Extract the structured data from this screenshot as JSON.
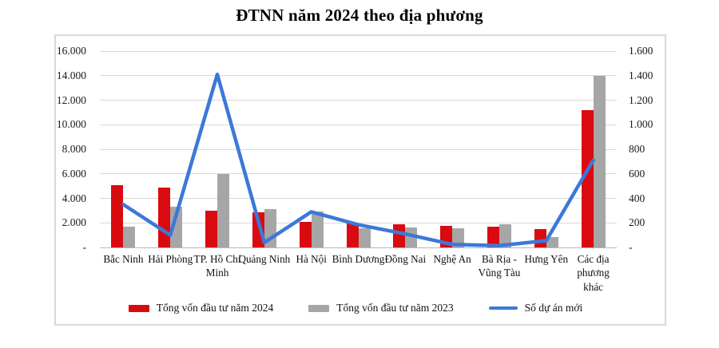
{
  "page": {
    "title": "ĐTNN năm 2024 theo địa phương"
  },
  "chart_data": {
    "type": "combo-bar-line",
    "title": "ĐTNN năm 2024 theo địa phương",
    "categories": [
      "Bắc Ninh",
      "Hải Phòng",
      "TP. Hồ Chí Minh",
      "Quảng Ninh",
      "Hà Nội",
      "Bình Dương",
      "Đồng Nai",
      "Nghệ An",
      "Bà Rịa - Vũng Tàu",
      "Hưng Yên",
      "Các địa phương khác"
    ],
    "series": [
      {
        "name": "Tổng vốn đầu tư năm 2024",
        "type": "bar",
        "axis": "left",
        "color": "#d90b10",
        "values": [
          5100,
          4900,
          3000,
          2850,
          2100,
          1950,
          1890,
          1750,
          1710,
          1480,
          11200
        ]
      },
      {
        "name": "Tổng vốn đầu tư năm 2023",
        "type": "bar",
        "axis": "left",
        "color": "#a6a6a6",
        "values": [
          1700,
          3300,
          6000,
          3100,
          2900,
          1550,
          1600,
          1550,
          1900,
          850,
          14000
        ]
      },
      {
        "name": "Số dự án mới",
        "type": "line",
        "axis": "right",
        "color": "#3c78d8",
        "values": [
          350,
          100,
          1410,
          40,
          290,
          185,
          110,
          25,
          15,
          55,
          710
        ]
      }
    ],
    "left_axis": {
      "min": 0,
      "max": 16000,
      "step": 2000,
      "tick_labels_bottom_up": [
        "-",
        "2.000",
        "4.000",
        "6.000",
        "8.000",
        "10.000",
        "12.000",
        "14.000",
        "16.000"
      ]
    },
    "right_axis": {
      "min": 0,
      "max": 1600,
      "step": 200,
      "tick_labels_bottom_up": [
        "-",
        "200",
        "400",
        "600",
        "800",
        "1.000",
        "1.200",
        "1.400",
        "1.600"
      ]
    },
    "grid": true,
    "legend_position": "bottom",
    "colors": {
      "grid": "#d9d9d9",
      "axis_line": "#b7b7b7",
      "text": "#1a1a1a",
      "frame_border": "#d9d9d9",
      "background": "#ffffff"
    }
  }
}
